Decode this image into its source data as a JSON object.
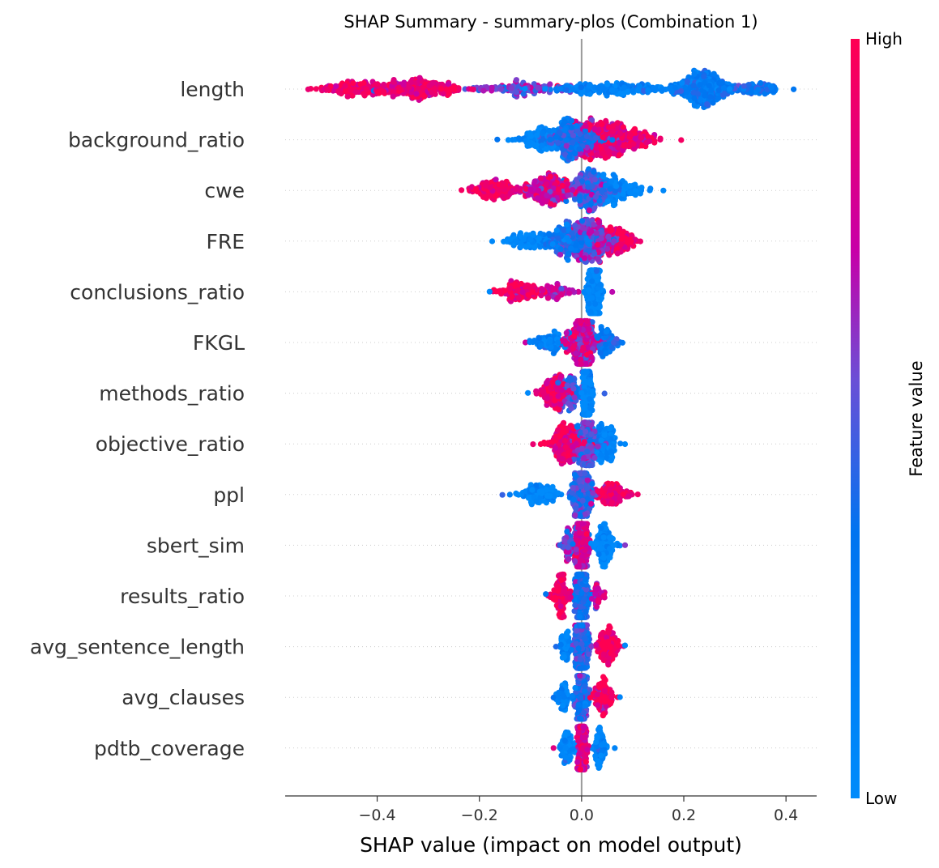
{
  "chart_data": {
    "type": "beeswarm",
    "title": "SHAP Summary - summary-plos (Combination 1)",
    "xlabel": "SHAP value (impact on model output)",
    "xlim": [
      -0.58,
      0.46
    ],
    "xticks": [
      -0.4,
      -0.2,
      0.0,
      0.2,
      0.4
    ],
    "xtick_labels": [
      "−0.4",
      "−0.2",
      "0.0",
      "0.2",
      "0.4"
    ],
    "colorbar": {
      "label": "Feature value",
      "high": "High",
      "low": "Low",
      "low_color": "#008bfb",
      "high_color": "#ff0052"
    },
    "features": [
      {
        "name": "length",
        "min": -0.535,
        "max": 0.415,
        "clusters": [
          {
            "c": -0.33,
            "w": 0.09,
            "n": 260,
            "col": 0.9
          },
          {
            "c": -0.45,
            "w": 0.05,
            "n": 110,
            "col": 0.95
          },
          {
            "c": 0.24,
            "w": 0.05,
            "n": 300,
            "col": 0.25
          },
          {
            "c": 0.05,
            "w": 0.14,
            "n": 200,
            "col": 0.15
          },
          {
            "c": -0.12,
            "w": 0.08,
            "n": 100,
            "col": 0.6
          },
          {
            "c": 0.34,
            "w": 0.05,
            "n": 80,
            "col": 0.3
          }
        ]
      },
      {
        "name": "background_ratio",
        "min": -0.165,
        "max": 0.195,
        "clusters": [
          {
            "c": -0.02,
            "w": 0.05,
            "n": 300,
            "col": 0.35
          },
          {
            "c": 0.05,
            "w": 0.05,
            "n": 300,
            "col": 0.85
          },
          {
            "c": -0.08,
            "w": 0.04,
            "n": 120,
            "col": 0.05
          },
          {
            "c": 0.11,
            "w": 0.04,
            "n": 80,
            "col": 0.95
          }
        ]
      },
      {
        "name": "cwe",
        "min": -0.235,
        "max": 0.16,
        "clusters": [
          {
            "c": -0.17,
            "w": 0.04,
            "n": 130,
            "col": 0.95
          },
          {
            "c": -0.06,
            "w": 0.05,
            "n": 250,
            "col": 0.8
          },
          {
            "c": 0.02,
            "w": 0.04,
            "n": 250,
            "col": 0.45
          },
          {
            "c": 0.08,
            "w": 0.04,
            "n": 120,
            "col": 0.05
          }
        ]
      },
      {
        "name": "FRE",
        "min": -0.175,
        "max": 0.115,
        "clusters": [
          {
            "c": -0.11,
            "w": 0.04,
            "n": 100,
            "col": 0.05
          },
          {
            "c": -0.02,
            "w": 0.04,
            "n": 200,
            "col": 0.3
          },
          {
            "c": 0.02,
            "w": 0.04,
            "n": 250,
            "col": 0.6
          },
          {
            "c": 0.07,
            "w": 0.03,
            "n": 120,
            "col": 0.92
          }
        ]
      },
      {
        "name": "conclusions_ratio",
        "min": -0.18,
        "max": 0.06,
        "clusters": [
          {
            "c": 0.025,
            "w": 0.012,
            "n": 350,
            "col": 0.03
          },
          {
            "c": -0.12,
            "w": 0.04,
            "n": 120,
            "col": 0.93
          },
          {
            "c": -0.05,
            "w": 0.03,
            "n": 60,
            "col": 0.7
          }
        ]
      },
      {
        "name": "FKGL",
        "min": -0.11,
        "max": 0.08,
        "clusters": [
          {
            "c": 0.0,
            "w": 0.03,
            "n": 330,
            "col": 0.75
          },
          {
            "c": -0.06,
            "w": 0.03,
            "n": 80,
            "col": 0.1
          },
          {
            "c": 0.05,
            "w": 0.02,
            "n": 80,
            "col": 0.3
          }
        ]
      },
      {
        "name": "methods_ratio",
        "min": -0.105,
        "max": 0.045,
        "clusters": [
          {
            "c": 0.01,
            "w": 0.008,
            "n": 320,
            "col": 0.03
          },
          {
            "c": -0.05,
            "w": 0.03,
            "n": 150,
            "col": 0.9
          },
          {
            "c": -0.02,
            "w": 0.02,
            "n": 80,
            "col": 0.45
          }
        ]
      },
      {
        "name": "objective_ratio",
        "min": -0.095,
        "max": 0.085,
        "clusters": [
          {
            "c": -0.03,
            "w": 0.03,
            "n": 200,
            "col": 0.9
          },
          {
            "c": 0.01,
            "w": 0.02,
            "n": 220,
            "col": 0.5
          },
          {
            "c": 0.045,
            "w": 0.02,
            "n": 140,
            "col": 0.05
          }
        ]
      },
      {
        "name": "ppl",
        "min": -0.155,
        "max": 0.11,
        "clusters": [
          {
            "c": 0.0,
            "w": 0.018,
            "n": 280,
            "col": 0.45
          },
          {
            "c": -0.08,
            "w": 0.04,
            "n": 120,
            "col": 0.05
          },
          {
            "c": 0.06,
            "w": 0.03,
            "n": 120,
            "col": 0.93
          }
        ]
      },
      {
        "name": "sbert_sim",
        "min": -0.045,
        "max": 0.085,
        "clusters": [
          {
            "c": 0.0,
            "w": 0.012,
            "n": 320,
            "col": 0.8
          },
          {
            "c": 0.045,
            "w": 0.02,
            "n": 140,
            "col": 0.05
          },
          {
            "c": -0.025,
            "w": 0.012,
            "n": 60,
            "col": 0.6
          }
        ]
      },
      {
        "name": "results_ratio",
        "min": -0.07,
        "max": 0.045,
        "clusters": [
          {
            "c": 0.0,
            "w": 0.012,
            "n": 320,
            "col": 0.35
          },
          {
            "c": -0.04,
            "w": 0.015,
            "n": 120,
            "col": 0.95
          },
          {
            "c": 0.03,
            "w": 0.01,
            "n": 40,
            "col": 0.8
          }
        ]
      },
      {
        "name": "avg_sentence_length",
        "min": -0.05,
        "max": 0.085,
        "clusters": [
          {
            "c": 0.0,
            "w": 0.012,
            "n": 320,
            "col": 0.4
          },
          {
            "c": 0.05,
            "w": 0.02,
            "n": 130,
            "col": 0.95
          },
          {
            "c": -0.03,
            "w": 0.012,
            "n": 60,
            "col": 0.05
          }
        ]
      },
      {
        "name": "avg_clauses",
        "min": -0.055,
        "max": 0.075,
        "clusters": [
          {
            "c": 0.0,
            "w": 0.012,
            "n": 320,
            "col": 0.4
          },
          {
            "c": 0.04,
            "w": 0.018,
            "n": 110,
            "col": 0.95
          },
          {
            "c": -0.035,
            "w": 0.012,
            "n": 60,
            "col": 0.1
          }
        ]
      },
      {
        "name": "pdtb_coverage",
        "min": -0.055,
        "max": 0.065,
        "clusters": [
          {
            "c": 0.0,
            "w": 0.008,
            "n": 330,
            "col": 0.85
          },
          {
            "c": -0.03,
            "w": 0.012,
            "n": 80,
            "col": 0.05
          },
          {
            "c": 0.035,
            "w": 0.012,
            "n": 80,
            "col": 0.1
          }
        ]
      }
    ]
  }
}
